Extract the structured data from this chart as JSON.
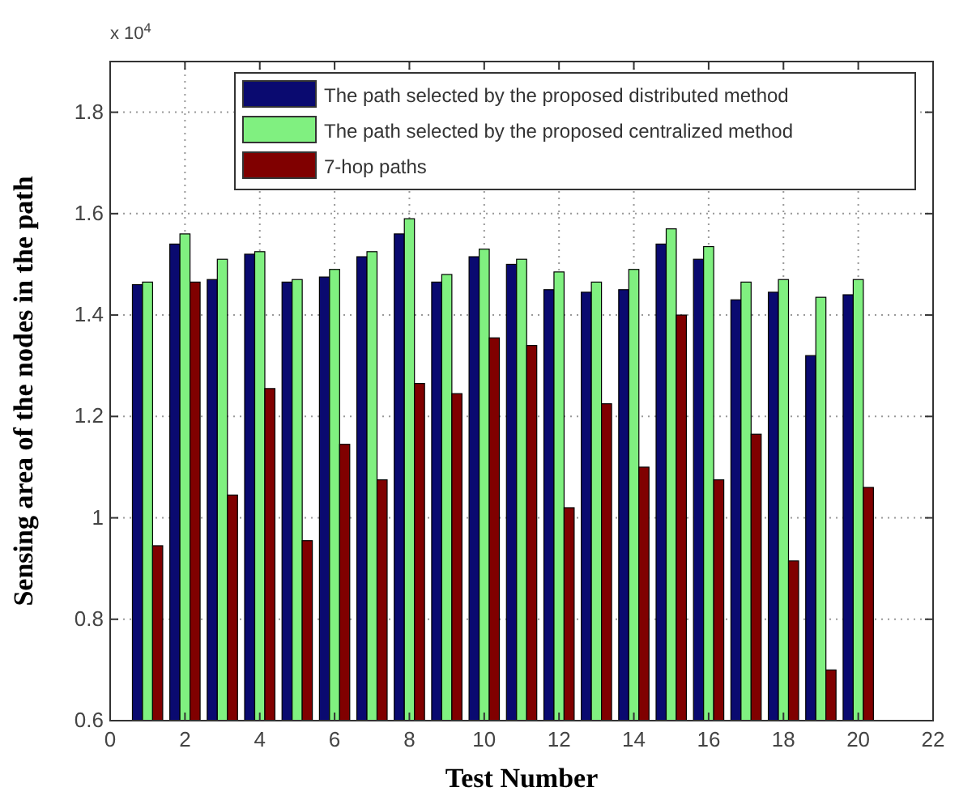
{
  "chart_data": {
    "type": "bar",
    "xlabel": "Test Number",
    "ylabel": "Sensing area of the nodes in the path",
    "annotations": [
      "x 10$^{4}$"
    ],
    "x": [
      1,
      2,
      3,
      4,
      5,
      6,
      7,
      8,
      9,
      10,
      11,
      12,
      13,
      14,
      15,
      16,
      17,
      18,
      19,
      20
    ],
    "series": [
      {
        "name": "The path selected by the proposed distributed method",
        "color": "#0a0a70",
        "values": [
          1.46,
          1.54,
          1.47,
          1.52,
          1.465,
          1.475,
          1.515,
          1.56,
          1.465,
          1.515,
          1.5,
          1.45,
          1.445,
          1.45,
          1.54,
          1.51,
          1.43,
          1.445,
          1.32,
          1.44
        ]
      },
      {
        "name": "The path selected by the proposed centralized method",
        "color": "#80f080",
        "values": [
          1.465,
          1.56,
          1.51,
          1.525,
          1.47,
          1.49,
          1.525,
          1.59,
          1.48,
          1.53,
          1.51,
          1.485,
          1.465,
          1.49,
          1.57,
          1.535,
          1.465,
          1.47,
          1.435,
          1.47
        ]
      },
      {
        "name": "7-hop paths",
        "color": "#800000",
        "values": [
          0.945,
          1.465,
          1.045,
          1.255,
          0.955,
          1.145,
          1.075,
          1.265,
          1.245,
          1.355,
          1.34,
          1.02,
          1.225,
          1.1,
          1.4,
          1.075,
          1.165,
          0.915,
          0.7,
          1.06
        ]
      }
    ],
    "xlim": [
      0,
      22
    ],
    "xticks": [
      0,
      2,
      4,
      6,
      8,
      10,
      12,
      14,
      16,
      18,
      20,
      22
    ],
    "ylim": [
      0.6,
      1.9
    ],
    "yticks": [
      0.6,
      0.8,
      1,
      1.2,
      1.4,
      1.6,
      1.8
    ],
    "grid": true,
    "legend": "top right"
  }
}
